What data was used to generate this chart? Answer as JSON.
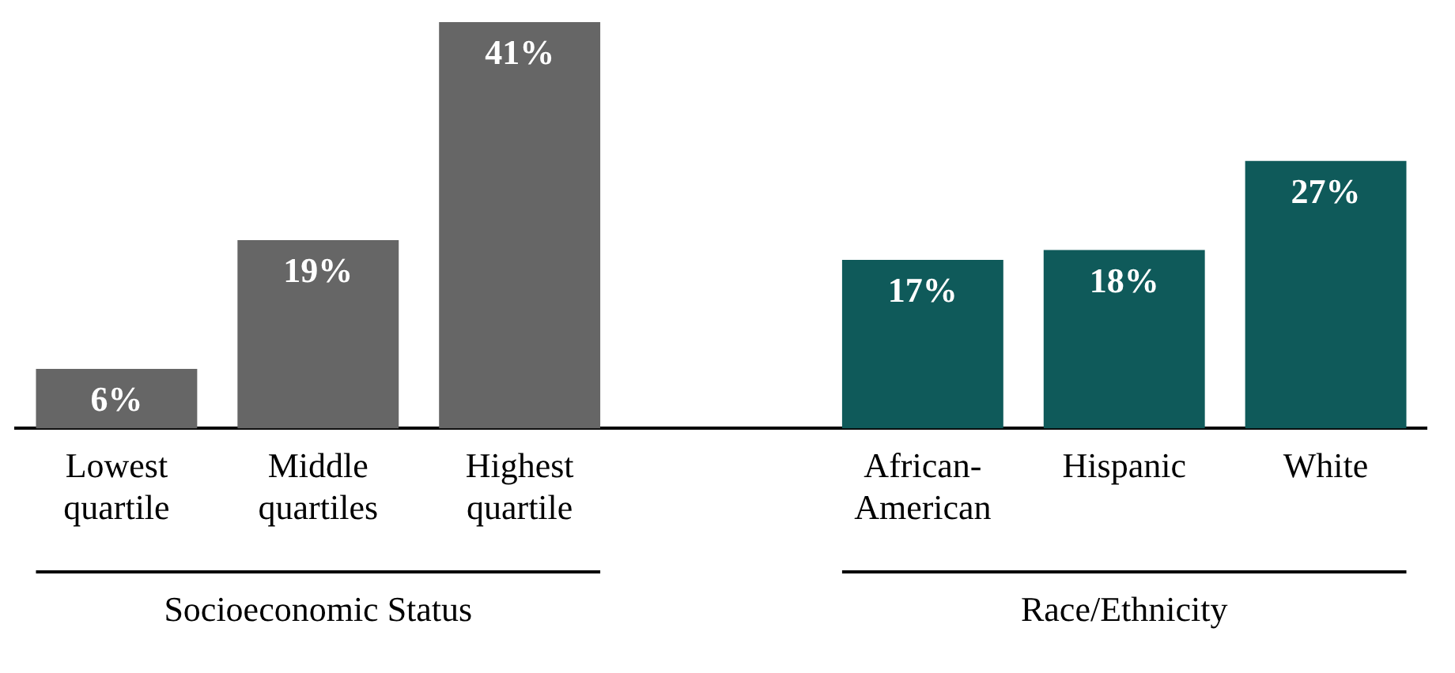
{
  "chart_data": {
    "type": "bar",
    "categories": [
      "Lowest quartile",
      "Middle quartiles",
      "Highest quartile",
      null,
      "African-American",
      "Hispanic",
      "White"
    ],
    "values": [
      6,
      19,
      41,
      null,
      17,
      18,
      27
    ],
    "colors": [
      "#666666",
      "#666666",
      "#666666",
      null,
      "#0f5a5a",
      "#0f5a5a",
      "#0f5a5a"
    ],
    "value_labels": [
      "6%",
      "19%",
      "41%",
      null,
      "17%",
      "18%",
      "27%"
    ],
    "ylim": [
      0,
      41
    ],
    "grid": false,
    "legend": false,
    "annotations": [
      "Socioeconomic Status",
      "Race/Ethnicity"
    ]
  }
}
